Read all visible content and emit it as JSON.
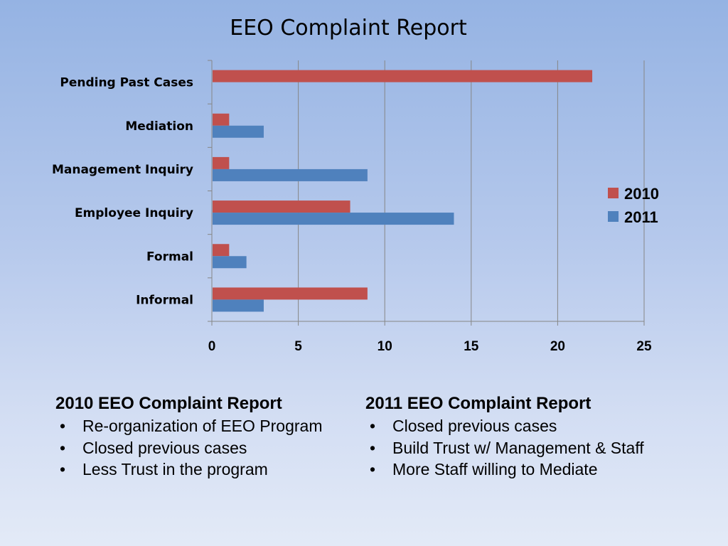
{
  "chart_data": {
    "type": "bar",
    "orientation": "horizontal",
    "title": "EEO Complaint Report",
    "categories": [
      "Pending Past Cases",
      "Mediation",
      "Management Inquiry",
      "Employee Inquiry",
      "Formal",
      "Informal"
    ],
    "series": [
      {
        "name": "2010",
        "color": "#c0504d",
        "values": [
          22,
          1,
          1,
          8,
          1,
          9
        ]
      },
      {
        "name": "2011",
        "color": "#4f81bd",
        "values": [
          0,
          3,
          9,
          14,
          2,
          3
        ]
      }
    ],
    "xlim": [
      0,
      25
    ],
    "xticks": [
      0,
      5,
      10,
      15,
      20,
      25
    ],
    "grid": true,
    "legend_position": "right"
  },
  "notes": {
    "left": {
      "heading": "2010 EEO Complaint Report",
      "items": [
        "Re-organization of EEO Program",
        "Closed previous cases",
        "Less Trust in the program"
      ]
    },
    "right": {
      "heading": "2011 EEO Complaint Report",
      "items": [
        "Closed previous cases",
        "Build Trust w/ Management & Staff",
        "More Staff willing to Mediate"
      ]
    }
  }
}
